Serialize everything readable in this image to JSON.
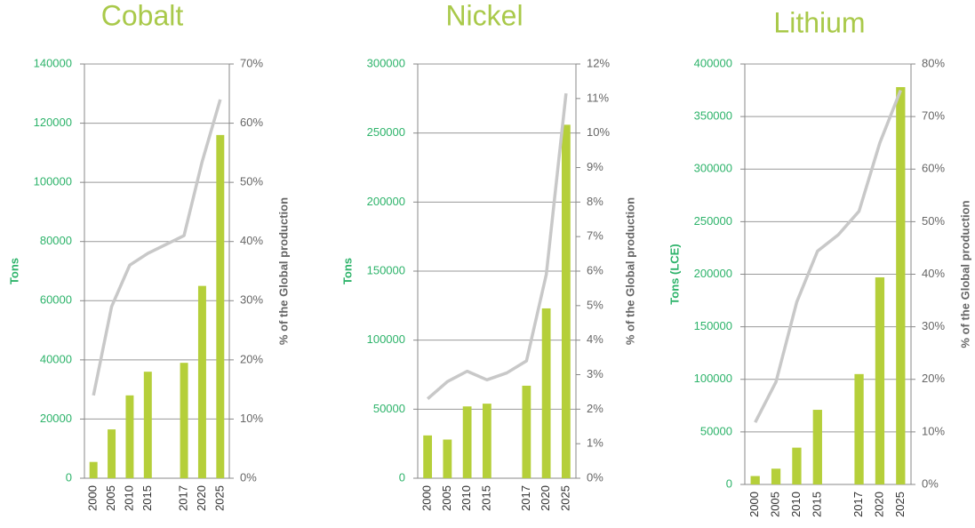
{
  "chart_data": [
    {
      "type": "bar",
      "title": "Cobalt",
      "ylabel": "Tons",
      "y2label": "% of the Global production",
      "categories": [
        "2000",
        "2005",
        "2010",
        "2015",
        null,
        "2017",
        "2020",
        "2025"
      ],
      "series": [
        {
          "color": "#b5cf3a",
          "values": [
            5500,
            16500,
            28000,
            36000,
            null,
            39000,
            65000,
            116000
          ]
        },
        {
          "type": "line",
          "axis": "y2",
          "color": "#c8c8c8",
          "values": [
            14,
            29,
            36,
            38,
            39.5,
            41,
            53.5,
            64
          ]
        }
      ],
      "ylim": [
        0,
        140000
      ],
      "yticks": [
        0,
        20000,
        40000,
        60000,
        80000,
        100000,
        120000,
        140000
      ],
      "y2lim": [
        0,
        70
      ],
      "y2ticks": [
        {
          "value": 0,
          "label": "0%"
        },
        {
          "value": 10,
          "label": "10%"
        },
        {
          "value": 20,
          "label": "20%"
        },
        {
          "value": 30,
          "label": "30%"
        },
        {
          "value": 40,
          "label": "40%"
        },
        {
          "value": 50,
          "label": "50%"
        },
        {
          "value": 60,
          "label": "60%"
        },
        {
          "value": 70,
          "label": "70%"
        }
      ],
      "grid": true
    },
    {
      "type": "bar",
      "title": "Nickel",
      "ylabel": "Tons",
      "y2label": "% of the Global production",
      "categories": [
        "2000",
        "2005",
        "2010",
        "2015",
        null,
        "2017",
        "2020",
        "2025"
      ],
      "series": [
        {
          "color": "#b5cf3a",
          "values": [
            31000,
            28000,
            52000,
            54000,
            null,
            67000,
            123000,
            256000
          ]
        },
        {
          "type": "line",
          "axis": "y2",
          "color": "#c8c8c8",
          "values": [
            2.3,
            2.8,
            3.1,
            2.85,
            3.05,
            3.4,
            5.9,
            11.15
          ]
        }
      ],
      "ylim": [
        0,
        300000
      ],
      "yticks": [
        0,
        50000,
        100000,
        150000,
        200000,
        250000,
        300000
      ],
      "y2lim": [
        0,
        12
      ],
      "y2ticks": [
        {
          "value": 0,
          "label": "0%"
        },
        {
          "value": 1,
          "label": "1%"
        },
        {
          "value": 2,
          "label": "2%"
        },
        {
          "value": 3,
          "label": "3%"
        },
        {
          "value": 4,
          "label": "4%"
        },
        {
          "value": 5,
          "label": "5%"
        },
        {
          "value": 6,
          "label": "6%"
        },
        {
          "value": 7,
          "label": "7%"
        },
        {
          "value": 8,
          "label": "8%"
        },
        {
          "value": 9,
          "label": "9%"
        },
        {
          "value": 10,
          "label": "10%"
        },
        {
          "value": 11,
          "label": "11%"
        },
        {
          "value": 12,
          "label": "12%"
        }
      ],
      "grid": true
    },
    {
      "type": "bar",
      "title": "Lithium",
      "ylabel": "Tons (LCE)",
      "y2label": "% of the Global production",
      "categories": [
        "2000",
        "2005",
        "2010",
        "2015",
        null,
        "2017",
        "2020",
        "2025"
      ],
      "series": [
        {
          "color": "#b5cf3a",
          "values": [
            8000,
            15000,
            35000,
            71000,
            null,
            105000,
            197000,
            378000
          ]
        },
        {
          "type": "line",
          "axis": "y2",
          "color": "#c8c8c8",
          "values": [
            11.8,
            19.5,
            34.7,
            44.4,
            47.5,
            52,
            65,
            75
          ]
        }
      ],
      "ylim": [
        0,
        400000
      ],
      "yticks": [
        0,
        50000,
        100000,
        150000,
        200000,
        250000,
        300000,
        350000,
        400000
      ],
      "y2lim": [
        0,
        80
      ],
      "y2ticks": [
        {
          "value": 0,
          "label": "0%"
        },
        {
          "value": 10,
          "label": "10%"
        },
        {
          "value": 20,
          "label": "20%"
        },
        {
          "value": 30,
          "label": "30%"
        },
        {
          "value": 40,
          "label": "40%"
        },
        {
          "value": 50,
          "label": "50%"
        },
        {
          "value": 60,
          "label": "60%"
        },
        {
          "value": 70,
          "label": "70%"
        },
        {
          "value": 80,
          "label": "80%"
        }
      ],
      "grid": true
    }
  ]
}
